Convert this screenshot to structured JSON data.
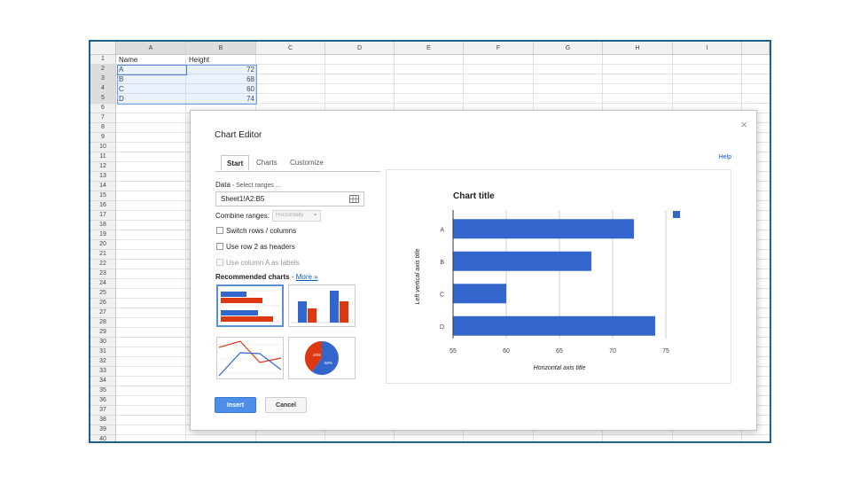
{
  "sheet": {
    "columns": [
      "A",
      "B",
      "C",
      "D",
      "E",
      "F",
      "G",
      "H",
      "I"
    ],
    "rows": [
      "1",
      "2",
      "3",
      "4",
      "5",
      "6",
      "7",
      "8",
      "9",
      "10",
      "11",
      "12",
      "13",
      "14",
      "15",
      "16",
      "17",
      "18",
      "19",
      "20",
      "21",
      "22",
      "23",
      "24",
      "25",
      "26",
      "27",
      "28",
      "29",
      "30",
      "31",
      "32",
      "33",
      "34",
      "35",
      "36",
      "37",
      "38",
      "39",
      "40"
    ],
    "header": {
      "name": "Name",
      "height": "Height"
    },
    "data": [
      {
        "name": "A",
        "height": "72"
      },
      {
        "name": "B",
        "height": "68"
      },
      {
        "name": "C",
        "height": "60"
      },
      {
        "name": "D",
        "height": "74"
      }
    ]
  },
  "dialog": {
    "title": "Chart Editor",
    "close": "×",
    "help": "Help",
    "tabs": [
      {
        "label": "Start",
        "active": true
      },
      {
        "label": "Charts",
        "active": false
      },
      {
        "label": "Customize",
        "active": false
      }
    ],
    "data_label": "Data",
    "data_hint": " - Select ranges ...",
    "range_value": "Sheet1!A2:B5",
    "combine_label": "Combine ranges:",
    "combine_value": "Horizontally",
    "options": [
      {
        "label": "Switch rows / columns",
        "disabled": false
      },
      {
        "label": "Use row 2 as headers",
        "disabled": false
      },
      {
        "label": "Use column A as labels",
        "disabled": true
      }
    ],
    "recommended_label": "Recommended charts",
    "recommended_sep": " - ",
    "more_link": "More »",
    "pie_labels": [
      "40%",
      "60%"
    ],
    "insert": "Insert",
    "cancel": "Cancel"
  },
  "chart_data": {
    "type": "bar",
    "orientation": "horizontal",
    "title": "Chart title",
    "xlabel": "Horizontal axis title",
    "ylabel": "Left vertical axis title",
    "categories": [
      "A",
      "B",
      "C",
      "D"
    ],
    "values": [
      72,
      68,
      60,
      74
    ],
    "xlim": [
      55,
      75
    ],
    "xticks": [
      "55",
      "60",
      "65",
      "70",
      "75"
    ],
    "grid": true,
    "legend": "top-right",
    "bar_color": "#3366cc"
  }
}
